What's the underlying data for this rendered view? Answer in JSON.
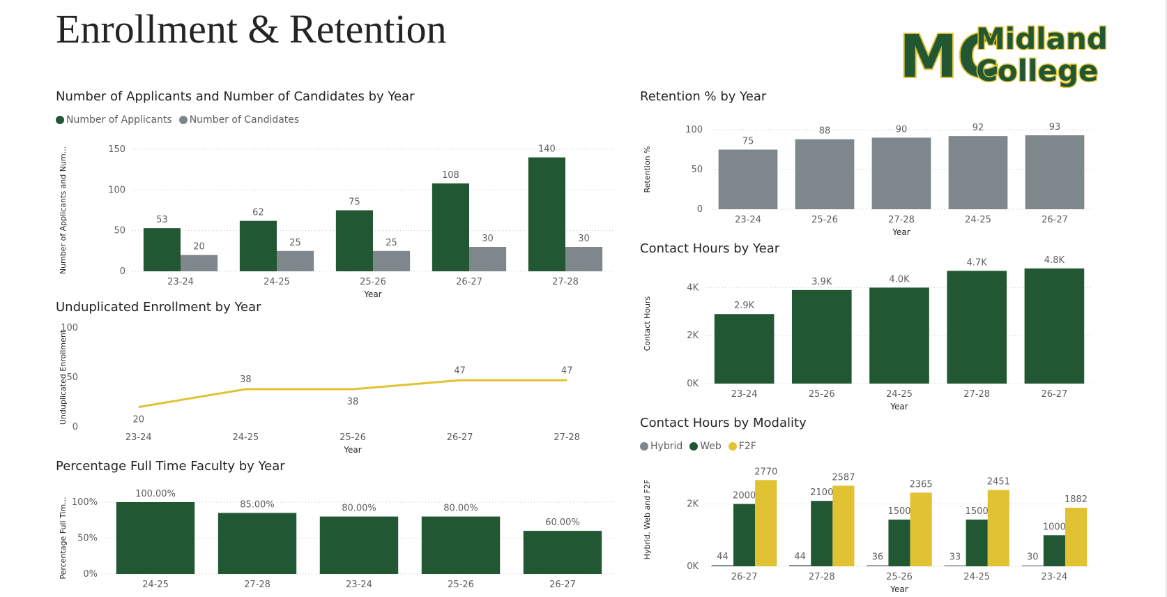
{
  "page": {
    "title": "Enrollment & Retention"
  },
  "logo": {
    "line1": "Midland",
    "line2": "College",
    "monogram": "MC"
  },
  "colors": {
    "green": "#215732",
    "gray": "#7e878c",
    "yellow": "#e1c233"
  },
  "chart_data": [
    {
      "id": "applicants",
      "type": "bar",
      "title": "Number of Applicants and Number of Candidates by Year",
      "xlabel": "Year",
      "ylabel": "Number of Applicants and Num...",
      "ylim": [
        0,
        150
      ],
      "yticks": [
        0,
        50,
        100,
        150
      ],
      "ytick_labels": [
        "0",
        "50",
        "100",
        "150"
      ],
      "grid": true,
      "legend": "top-left",
      "categories": [
        "23-24",
        "24-25",
        "25-26",
        "26-27",
        "27-28"
      ],
      "series": [
        {
          "name": "Number of Applicants",
          "color": "#215732",
          "values": [
            53,
            62,
            75,
            108,
            140
          ],
          "labels": [
            "53",
            "62",
            "75",
            "108",
            "140"
          ]
        },
        {
          "name": "Number of Candidates",
          "color": "#7e878c",
          "values": [
            20,
            25,
            25,
            30,
            30
          ],
          "labels": [
            "20",
            "25",
            "25",
            "30",
            "30"
          ]
        }
      ]
    },
    {
      "id": "enrollment",
      "type": "line",
      "title": "Unduplicated Enrollment by Year",
      "xlabel": "Year",
      "ylabel": "Unduplicated Enrollment",
      "ylim": [
        0,
        100
      ],
      "yticks": [
        0,
        50,
        100
      ],
      "ytick_labels": [
        "0",
        "50",
        "100"
      ],
      "grid": false,
      "categories": [
        "23-24",
        "24-25",
        "25-26",
        "26-27",
        "27-28"
      ],
      "series": [
        {
          "color": "#e1c233",
          "values": [
            20,
            38,
            38,
            47,
            47
          ],
          "labels": [
            "20",
            "38",
            "38",
            "47",
            "47"
          ]
        }
      ]
    },
    {
      "id": "faculty",
      "type": "bar",
      "title": "Percentage Full Time Faculty by Year",
      "xlabel": "",
      "ylabel": "Percentage Full Tim...",
      "ylim": [
        0,
        1
      ],
      "yticks": [
        0,
        0.5,
        1
      ],
      "ytick_labels": [
        "0%",
        "50%",
        "100%"
      ],
      "grid": true,
      "categories": [
        "24-25",
        "27-28",
        "23-24",
        "25-26",
        "26-27"
      ],
      "series": [
        {
          "color": "#215732",
          "values": [
            1.0,
            0.85,
            0.8,
            0.8,
            0.6
          ],
          "labels": [
            "100.00%",
            "85.00%",
            "80.00%",
            "80.00%",
            "60.00%"
          ]
        }
      ]
    },
    {
      "id": "retention",
      "type": "bar",
      "title": "Retention % by Year",
      "xlabel": "Year",
      "ylabel": "Retention %",
      "ylim": [
        0,
        100
      ],
      "yticks": [
        0,
        50,
        100
      ],
      "ytick_labels": [
        "0",
        "50",
        "100"
      ],
      "grid": true,
      "categories": [
        "23-24",
        "25-26",
        "27-28",
        "24-25",
        "26-27"
      ],
      "series": [
        {
          "color": "#7e878c",
          "values": [
            75,
            88,
            90,
            92,
            93
          ],
          "labels": [
            "75",
            "88",
            "90",
            "92",
            "93"
          ]
        }
      ]
    },
    {
      "id": "contact",
      "type": "bar",
      "title": "Contact Hours by Year",
      "xlabel": "Year",
      "ylabel": "Contact Hours",
      "ylim": [
        0,
        5000
      ],
      "yticks": [
        0,
        2000,
        4000
      ],
      "ytick_labels": [
        "0K",
        "2K",
        "4K"
      ],
      "grid": true,
      "categories": [
        "23-24",
        "25-26",
        "24-25",
        "27-28",
        "26-27"
      ],
      "series": [
        {
          "color": "#215732",
          "values": [
            2900,
            3900,
            4000,
            4700,
            4800
          ],
          "labels": [
            "2.9K",
            "3.9K",
            "4.0K",
            "4.7K",
            "4.8K"
          ]
        }
      ]
    },
    {
      "id": "modality",
      "type": "bar",
      "title": "Contact Hours by Modality",
      "xlabel": "Year",
      "ylabel": "Hybrid, Web and F2F",
      "ylim": [
        0,
        3000
      ],
      "yticks": [
        0,
        2000
      ],
      "ytick_labels": [
        "0K",
        "2K"
      ],
      "grid": true,
      "legend": "top-left",
      "categories": [
        "26-27",
        "27-28",
        "25-26",
        "24-25",
        "23-24"
      ],
      "series": [
        {
          "name": "Hybrid",
          "color": "#7e878c",
          "values": [
            44,
            44,
            36,
            33,
            30
          ],
          "labels": [
            "44",
            "44",
            "36",
            "33",
            "30"
          ]
        },
        {
          "name": "Web",
          "color": "#215732",
          "values": [
            2000,
            2100,
            1500,
            1500,
            1000
          ],
          "labels": [
            "2000",
            "2100",
            "1500",
            "1500",
            "1000"
          ]
        },
        {
          "name": "F2F",
          "color": "#e1c233",
          "values": [
            2770,
            2587,
            2365,
            2451,
            1882
          ],
          "labels": [
            "2770",
            "2587",
            "2365",
            "2451",
            "1882"
          ]
        }
      ]
    }
  ]
}
